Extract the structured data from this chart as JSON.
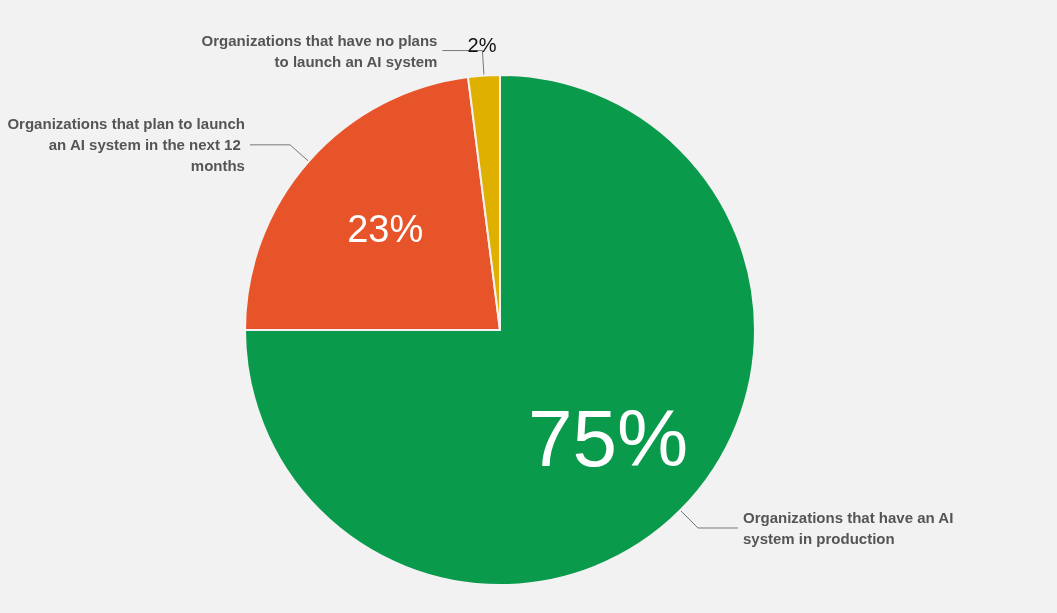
{
  "chart_data": {
    "type": "pie",
    "categories": [
      "Organizations that have an AI system in production",
      "Organizations that plan to launch an AI system in the next 12 months",
      "Organizations that have no plans to launch an AI system"
    ],
    "values": [
      75,
      23,
      2
    ],
    "value_labels": [
      "75%",
      "23%",
      "2%"
    ],
    "colors": [
      "#0a9a4c",
      "#e8542a",
      "#e0b000"
    ],
    "legend": false
  }
}
